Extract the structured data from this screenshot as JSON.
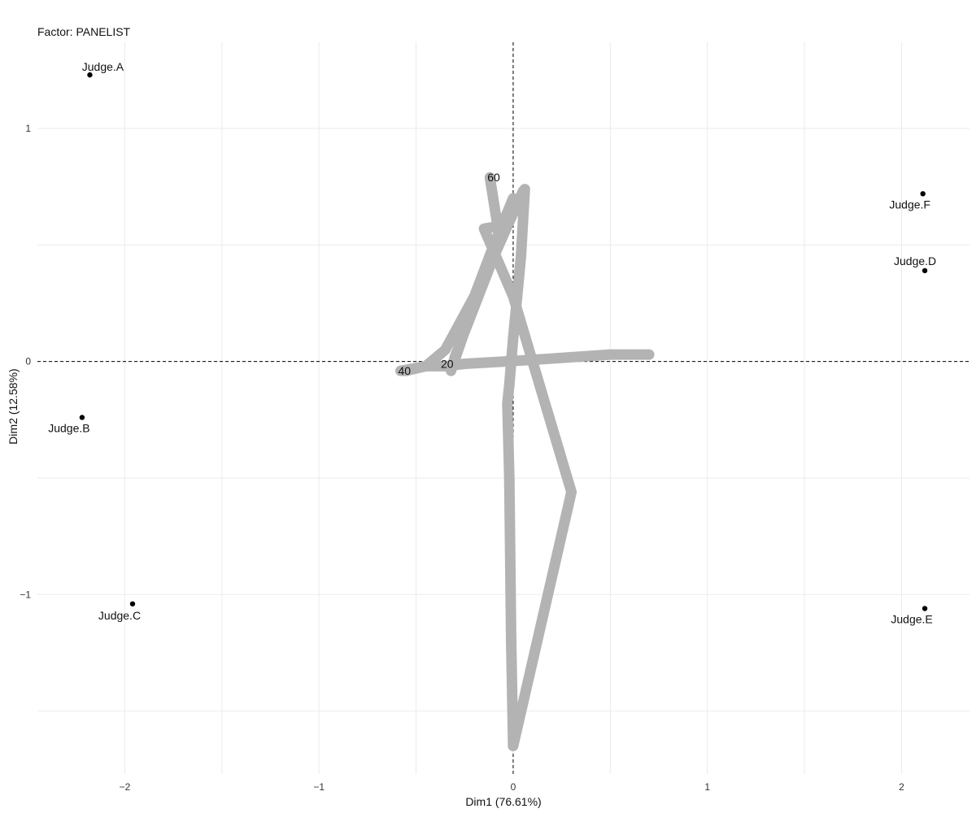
{
  "chart_data": {
    "type": "scatter",
    "title": "Factor: PANELIST",
    "xlabel": "Dim1 (76.61%)",
    "ylabel": "Dim2 (12.58%)",
    "xlim": [
      -2.45,
      2.35
    ],
    "ylim": [
      -1.77,
      1.37
    ],
    "x_ticks": [
      -2,
      -1,
      0,
      1,
      2
    ],
    "y_ticks": [
      -1,
      0,
      1
    ],
    "x_tick_labels": [
      "-2",
      "-1",
      "0",
      "1",
      "2"
    ],
    "y_tick_labels": [
      "-1",
      "0",
      "1"
    ],
    "grid": true,
    "reference_lines": {
      "x": 0,
      "y": 0,
      "style": "dashed"
    },
    "points": [
      {
        "label": "Judge.A",
        "x": -2.18,
        "y": 1.23
      },
      {
        "label": "Judge.B",
        "x": -2.22,
        "y": -0.24
      },
      {
        "label": "Judge.C",
        "x": -1.96,
        "y": -1.04
      },
      {
        "label": "Judge.D",
        "x": 2.12,
        "y": 0.39
      },
      {
        "label": "Judge.E",
        "x": 2.12,
        "y": -1.06
      },
      {
        "label": "Judge.F",
        "x": 2.11,
        "y": 0.72
      }
    ],
    "path": {
      "color": "#b3b3b3",
      "x": [
        0.7,
        0.5,
        0.15,
        -0.05,
        -0.25,
        -0.35,
        -0.45,
        -0.55,
        -0.58,
        -0.45,
        -0.35,
        -0.2,
        -0.1,
        0.0,
        -0.1,
        -0.3,
        -0.32,
        -0.18,
        -0.02,
        0.05,
        0.06,
        0.04,
        0.0,
        -0.02,
        -0.03,
        -0.02,
        -0.01,
        0.0,
        0.3,
        0.0,
        -0.15,
        -0.08,
        -0.12
      ],
      "y": [
        0.03,
        0.03,
        0.01,
        0.0,
        -0.01,
        -0.02,
        -0.02,
        -0.04,
        -0.04,
        -0.02,
        0.05,
        0.28,
        0.5,
        0.7,
        0.45,
        0.02,
        -0.04,
        0.3,
        0.6,
        0.73,
        0.74,
        0.45,
        0.1,
        -0.1,
        -0.18,
        -0.5,
        -1.2,
        -1.65,
        -0.56,
        0.28,
        0.57,
        0.58,
        0.79
      ]
    },
    "path_labels": [
      {
        "label": "20",
        "x": -0.34,
        "y": -0.01
      },
      {
        "label": "40",
        "x": -0.56,
        "y": -0.04
      },
      {
        "label": "60",
        "x": -0.1,
        "y": 0.79
      }
    ]
  },
  "colors": {
    "grid": "#ebebeb",
    "ref_line": "#000000",
    "point": "#000000",
    "path": "#b3b3b3"
  }
}
